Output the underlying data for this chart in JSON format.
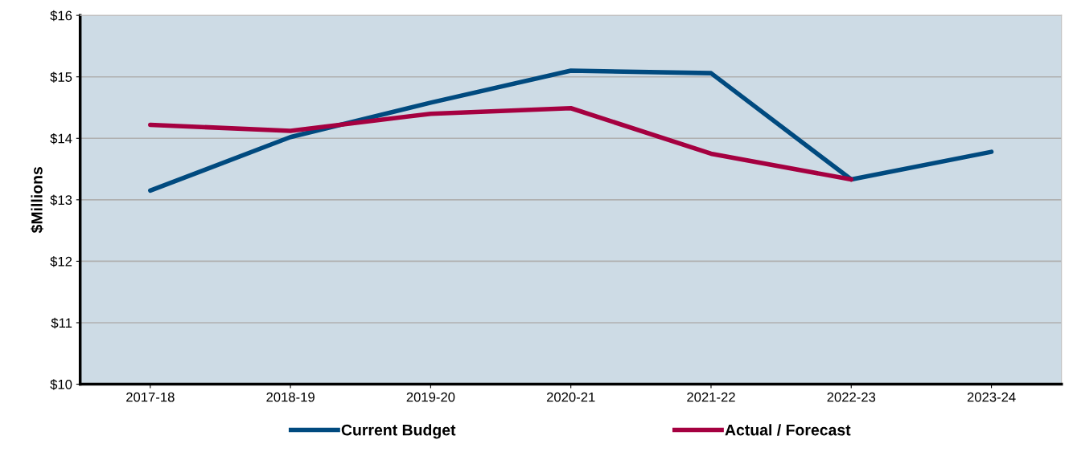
{
  "chart_data": {
    "type": "line",
    "ylabel": "$Millions",
    "categories": [
      "2017-18",
      "2018-19",
      "2019-20",
      "2020-21",
      "2021-22",
      "2022-23",
      "2023-24"
    ],
    "series": [
      {
        "name": "Current Budget",
        "color": "#004a7f",
        "values": [
          13.15,
          14.02,
          14.58,
          15.1,
          15.06,
          13.33,
          13.78
        ]
      },
      {
        "name": "Actual / Forecast",
        "color": "#a50040",
        "values": [
          14.22,
          14.12,
          14.4,
          14.49,
          13.75,
          13.33,
          null
        ]
      }
    ],
    "ylim": [
      10,
      16
    ],
    "yticks": [
      {
        "value": 10,
        "label": "$10"
      },
      {
        "value": 11,
        "label": "$11"
      },
      {
        "value": 12,
        "label": "$12"
      },
      {
        "value": 13,
        "label": "$13"
      },
      {
        "value": 14,
        "label": "$14"
      },
      {
        "value": 15,
        "label": "$15"
      },
      {
        "value": 16,
        "label": "$16"
      }
    ],
    "grid": "y",
    "legend": "bottom",
    "marker": "none",
    "line_style": "solid"
  }
}
